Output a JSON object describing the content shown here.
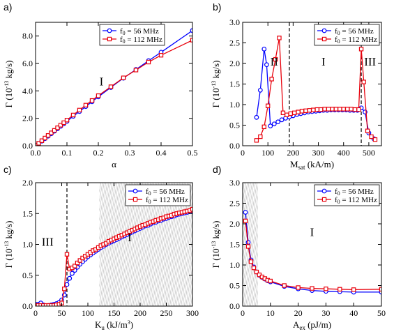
{
  "colors": {
    "blue": "#0000ff",
    "red": "#e8000b",
    "hatch": "#b4b4b4",
    "axis": "#000000"
  },
  "chart_data": [
    {
      "panel": "a)",
      "type": "line",
      "xlabel": "α",
      "ylabel": "Γ (10^-13 kg/s)",
      "xlim": [
        0,
        0.5
      ],
      "ylim": [
        0,
        9
      ],
      "xticks": [
        {
          "v": 0,
          "t": "0.0"
        },
        {
          "v": 0.1,
          "t": "0.1"
        },
        {
          "v": 0.2,
          "t": "0.2"
        },
        {
          "v": 0.3,
          "t": "0.3"
        },
        {
          "v": 0.4,
          "t": "0.4"
        },
        {
          "v": 0.5,
          "t": "0.5"
        }
      ],
      "yticks": [
        {
          "v": 0,
          "t": "0.0"
        },
        {
          "v": 2,
          "t": "2.0"
        },
        {
          "v": 4,
          "t": "4.0"
        },
        {
          "v": 6,
          "t": "6.0"
        },
        {
          "v": 8,
          "t": "8.0"
        }
      ],
      "legend": "top-left",
      "legend_labels": [
        "f0 = 56 MHz",
        "f0 = 112 MHz"
      ],
      "regions": [
        {
          "label": "I",
          "x": 0.21,
          "y": 4.4
        }
      ],
      "vlines": [],
      "hatch": [],
      "series": [
        {
          "name": "f0 = 56 MHz",
          "color": "blue",
          "marker": "circle",
          "x": [
            0.001,
            0.01,
            0.02,
            0.03,
            0.04,
            0.05,
            0.06,
            0.07,
            0.08,
            0.09,
            0.1,
            0.12,
            0.14,
            0.16,
            0.18,
            0.2,
            0.24,
            0.28,
            0.32,
            0.36,
            0.4,
            0.5
          ],
          "y": [
            0.02,
            0.16,
            0.34,
            0.52,
            0.7,
            0.88,
            1.06,
            1.24,
            1.42,
            1.6,
            1.78,
            2.15,
            2.5,
            2.86,
            3.21,
            3.57,
            4.25,
            4.93,
            5.56,
            6.2,
            6.82,
            8.4
          ]
        },
        {
          "name": "f0 = 112 MHz",
          "color": "red",
          "marker": "square",
          "x": [
            0.001,
            0.01,
            0.02,
            0.03,
            0.04,
            0.05,
            0.06,
            0.07,
            0.08,
            0.09,
            0.1,
            0.12,
            0.14,
            0.16,
            0.18,
            0.2,
            0.24,
            0.28,
            0.32,
            0.36,
            0.4,
            0.5
          ],
          "y": [
            0.02,
            0.18,
            0.37,
            0.56,
            0.75,
            0.94,
            1.12,
            1.31,
            1.5,
            1.68,
            1.87,
            2.24,
            2.6,
            2.96,
            3.3,
            3.65,
            4.3,
            4.95,
            5.52,
            6.1,
            6.6,
            7.7
          ]
        }
      ]
    },
    {
      "panel": "b)",
      "type": "line",
      "xlabel": "Msat (kA/m)",
      "ylabel": "Γ (10^-13 kg/s)",
      "xlim": [
        0,
        550
      ],
      "ylim": [
        0,
        3
      ],
      "xticks": [
        {
          "v": 0,
          "t": "0"
        },
        {
          "v": 100,
          "t": "100"
        },
        {
          "v": 200,
          "t": "200"
        },
        {
          "v": 300,
          "t": "300"
        },
        {
          "v": 400,
          "t": "400"
        },
        {
          "v": 500,
          "t": "500"
        }
      ],
      "yticks": [
        {
          "v": 0,
          "t": "0.0"
        },
        {
          "v": 0.5,
          "t": "0.5"
        },
        {
          "v": 1,
          "t": "1.0"
        },
        {
          "v": 1.5,
          "t": "1.5"
        },
        {
          "v": 2,
          "t": "2.0"
        },
        {
          "v": 2.5,
          "t": "2.5"
        },
        {
          "v": 3,
          "t": "3.0"
        }
      ],
      "legend": "top-right",
      "legend_labels": [
        "f0 = 56 MHz",
        "f0 = 112 MHz"
      ],
      "regions": [
        {
          "label": "II",
          "x": 125,
          "y": 1.95
        },
        {
          "label": "I",
          "x": 320,
          "y": 1.95
        },
        {
          "label": "III",
          "x": 505,
          "y": 1.95
        }
      ],
      "vlines": [
        185,
        470
      ],
      "hatch": [],
      "series": [
        {
          "name": "f0 = 56 MHz",
          "color": "blue",
          "marker": "circle",
          "x": [
            55,
            70,
            85,
            95,
            110,
            125,
            140,
            155,
            170,
            185,
            200,
            215,
            230,
            245,
            260,
            275,
            290,
            305,
            320,
            335,
            350,
            365,
            380,
            395,
            410,
            425,
            440,
            455,
            470,
            485,
            500,
            520
          ],
          "y": [
            0.69,
            1.35,
            2.35,
            1.97,
            0.48,
            0.53,
            0.58,
            0.63,
            0.67,
            0.7,
            0.73,
            0.76,
            0.78,
            0.8,
            0.82,
            0.83,
            0.84,
            0.85,
            0.86,
            0.86,
            0.87,
            0.87,
            0.87,
            0.87,
            0.87,
            0.86,
            0.86,
            0.86,
            0.92,
            0.82,
            0.31,
            0.17
          ]
        },
        {
          "name": "f0 = 112 MHz",
          "color": "red",
          "marker": "square",
          "x": [
            55,
            70,
            85,
            100,
            115,
            130,
            145,
            160,
            175,
            190,
            205,
            220,
            235,
            250,
            265,
            280,
            295,
            310,
            325,
            340,
            355,
            370,
            385,
            400,
            415,
            430,
            445,
            460,
            470,
            480,
            495,
            510,
            525
          ],
          "y": [
            0.13,
            0.22,
            0.46,
            0.97,
            1.62,
            2.1,
            2.62,
            0.8,
            0.75,
            0.78,
            0.8,
            0.82,
            0.84,
            0.85,
            0.86,
            0.87,
            0.88,
            0.88,
            0.89,
            0.89,
            0.89,
            0.89,
            0.89,
            0.89,
            0.89,
            0.89,
            0.88,
            0.88,
            2.35,
            1.55,
            0.36,
            0.22,
            0.15
          ]
        }
      ]
    },
    {
      "panel": "c)",
      "type": "line",
      "xlabel": "Ku (kJ/m^3)",
      "ylabel": "Γ (10^-13 kg/s)",
      "xlim": [
        0,
        300
      ],
      "ylim": [
        0,
        2
      ],
      "xticks": [
        {
          "v": 0,
          "t": "0"
        },
        {
          "v": 50,
          "t": "50"
        },
        {
          "v": 100,
          "t": "100"
        },
        {
          "v": 150,
          "t": "150"
        },
        {
          "v": 200,
          "t": "200"
        },
        {
          "v": 250,
          "t": "250"
        },
        {
          "v": 300,
          "t": "300"
        }
      ],
      "yticks": [
        {
          "v": 0,
          "t": "0.0"
        },
        {
          "v": 0.5,
          "t": "0.5"
        },
        {
          "v": 1,
          "t": "1.0"
        },
        {
          "v": 1.5,
          "t": "1.5"
        },
        {
          "v": 2,
          "t": "2.0"
        }
      ],
      "legend": "top-right",
      "legend_labels": [
        "f0 = 56 MHz",
        "f0 = 112 MHz"
      ],
      "regions": [
        {
          "label": "III",
          "x": 23,
          "y": 0.98
        },
        {
          "label": "I",
          "x": 180,
          "y": 1.05
        }
      ],
      "vlines": [
        60
      ],
      "hatch": [
        [
          122,
          300
        ]
      ],
      "series": [
        {
          "name": "f0 = 56 MHz",
          "color": "blue",
          "marker": "circle",
          "x": [
            0,
            5,
            10,
            15,
            20,
            25,
            30,
            35,
            40,
            45,
            50,
            55,
            60,
            65,
            70,
            75,
            80,
            85,
            90,
            95,
            100,
            105,
            110,
            115,
            120,
            125,
            130,
            135,
            140,
            145,
            150,
            155,
            160,
            165,
            170,
            175,
            180,
            185,
            190,
            195,
            200,
            205,
            210,
            215,
            220,
            225,
            230,
            235,
            240,
            245,
            250,
            255,
            260,
            265,
            270,
            275,
            280,
            285,
            290,
            295,
            300
          ],
          "y": [
            0.03,
            0.03,
            0.05,
            0.02,
            0.0,
            0.01,
            0.02,
            0.03,
            0.04,
            0.06,
            0.1,
            0.18,
            0.35,
            0.45,
            0.53,
            0.58,
            0.63,
            0.68,
            0.72,
            0.76,
            0.8,
            0.83,
            0.86,
            0.89,
            0.92,
            0.95,
            0.97,
            1.0,
            1.02,
            1.04,
            1.06,
            1.08,
            1.1,
            1.12,
            1.14,
            1.16,
            1.18,
            1.2,
            1.22,
            1.24,
            1.26,
            1.28,
            1.3,
            1.31,
            1.33,
            1.35,
            1.36,
            1.38,
            1.39,
            1.41,
            1.42,
            1.44,
            1.45,
            1.46,
            1.48,
            1.49,
            1.5,
            1.51,
            1.52,
            1.53,
            1.54
          ]
        },
        {
          "name": "f0 = 112 MHz",
          "color": "red",
          "marker": "square",
          "x": [
            0,
            5,
            10,
            15,
            20,
            25,
            30,
            35,
            40,
            45,
            50,
            55,
            60,
            65,
            70,
            75,
            80,
            85,
            90,
            95,
            100,
            105,
            110,
            115,
            120,
            125,
            130,
            135,
            140,
            145,
            150,
            155,
            160,
            165,
            170,
            175,
            180,
            185,
            190,
            195,
            200,
            205,
            210,
            215,
            220,
            225,
            230,
            235,
            240,
            245,
            250,
            255,
            260,
            265,
            270,
            275,
            280,
            285,
            290,
            295,
            300
          ],
          "y": [
            0.01,
            0.01,
            0.01,
            0.01,
            0.01,
            0.01,
            0.01,
            0.01,
            0.02,
            0.03,
            0.05,
            0.28,
            0.84,
            0.6,
            0.62,
            0.65,
            0.7,
            0.74,
            0.78,
            0.81,
            0.84,
            0.87,
            0.9,
            0.92,
            0.95,
            0.98,
            1.0,
            1.02,
            1.05,
            1.07,
            1.09,
            1.11,
            1.13,
            1.15,
            1.17,
            1.19,
            1.21,
            1.23,
            1.25,
            1.27,
            1.29,
            1.31,
            1.32,
            1.34,
            1.36,
            1.37,
            1.39,
            1.4,
            1.42,
            1.43,
            1.45,
            1.46,
            1.47,
            1.49,
            1.5,
            1.51,
            1.52,
            1.53,
            1.54,
            1.55,
            1.57
          ]
        }
      ]
    },
    {
      "panel": "d)",
      "type": "line",
      "xlabel": "Aex (pJ/m)",
      "ylabel": "Γ (10^-13 kg/s)",
      "xlim": [
        0,
        50
      ],
      "ylim": [
        0,
        3
      ],
      "xticks": [
        {
          "v": 0,
          "t": "0"
        },
        {
          "v": 10,
          "t": "10"
        },
        {
          "v": 20,
          "t": "20"
        },
        {
          "v": 30,
          "t": "30"
        },
        {
          "v": 40,
          "t": "40"
        },
        {
          "v": 50,
          "t": "50"
        }
      ],
      "yticks": [
        {
          "v": 0,
          "t": "0.0"
        },
        {
          "v": 0.5,
          "t": "0.5"
        },
        {
          "v": 1,
          "t": "1.0"
        },
        {
          "v": 1.5,
          "t": "1.5"
        },
        {
          "v": 2,
          "t": "2.0"
        },
        {
          "v": 2.5,
          "t": "2.5"
        },
        {
          "v": 3,
          "t": "3.0"
        }
      ],
      "legend": "top-right",
      "legend_labels": [
        "f0 = 56 MHz",
        "f0 = 112 MHz"
      ],
      "regions": [
        {
          "label": "I",
          "x": 25,
          "y": 1.7
        }
      ],
      "vlines": [],
      "hatch": [
        [
          0,
          5.5
        ]
      ],
      "series": [
        {
          "name": "f0 = 56 MHz",
          "color": "blue",
          "marker": "circle",
          "x": [
            1,
            2,
            3,
            4,
            5,
            6,
            7,
            8,
            9,
            10,
            15,
            20,
            25,
            30,
            35,
            40,
            50
          ],
          "y": [
            2.28,
            1.55,
            1.12,
            0.95,
            0.83,
            0.75,
            0.7,
            0.66,
            0.62,
            0.59,
            0.48,
            0.42,
            0.38,
            0.36,
            0.35,
            0.34,
            0.34
          ]
        },
        {
          "name": "f0 = 112 MHz",
          "color": "red",
          "marker": "square",
          "x": [
            1,
            2,
            3,
            4,
            5,
            6,
            7,
            8,
            9,
            10,
            15,
            20,
            25,
            30,
            35,
            40,
            50
          ],
          "y": [
            2.07,
            1.45,
            1.08,
            0.93,
            0.83,
            0.76,
            0.71,
            0.67,
            0.63,
            0.61,
            0.5,
            0.45,
            0.43,
            0.42,
            0.41,
            0.4,
            0.41
          ]
        }
      ]
    }
  ]
}
